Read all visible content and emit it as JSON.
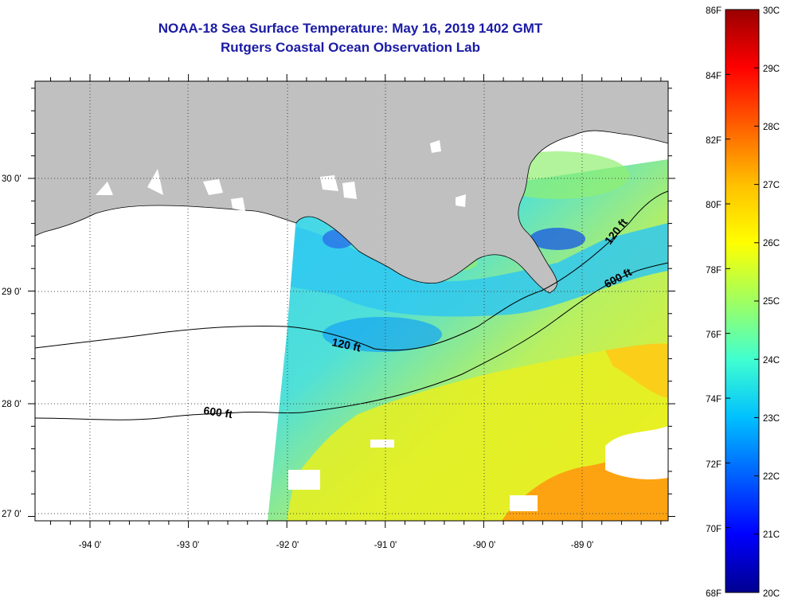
{
  "header": {
    "title_line1": "NOAA-18 Sea Surface Temperature:  May 16, 2019 1402 GMT",
    "title_line2": "Rutgers Coastal Ocean Observation Lab"
  },
  "map": {
    "lon_labels": [
      "-94 0'",
      "-93 0'",
      "-92 0'",
      "-91 0'",
      "-90 0'",
      "-89 0'"
    ],
    "lat_labels": [
      "30 0'",
      "29 0'",
      "28 0'",
      "27 0'"
    ],
    "contours": {
      "shallow_label": "120 ft",
      "deep_label": "600 ft"
    },
    "colors": {
      "land": "#c0c0c0",
      "nodata": "#ffffff"
    }
  },
  "colorbar": {
    "fahrenheit": [
      "86F",
      "84F",
      "82F",
      "80F",
      "78F",
      "76F",
      "74F",
      "72F",
      "70F",
      "68F"
    ],
    "celsius": [
      "30C",
      "29C",
      "28C",
      "27C",
      "26C",
      "25C",
      "24C",
      "23C",
      "22C",
      "21C",
      "20C"
    ],
    "stops": [
      "#00008f",
      "#0000ff",
      "#0060ff",
      "#00c0ff",
      "#40ffd0",
      "#a0ff60",
      "#ffff00",
      "#ffc000",
      "#ff6000",
      "#ff0000",
      "#9a0000"
    ]
  }
}
